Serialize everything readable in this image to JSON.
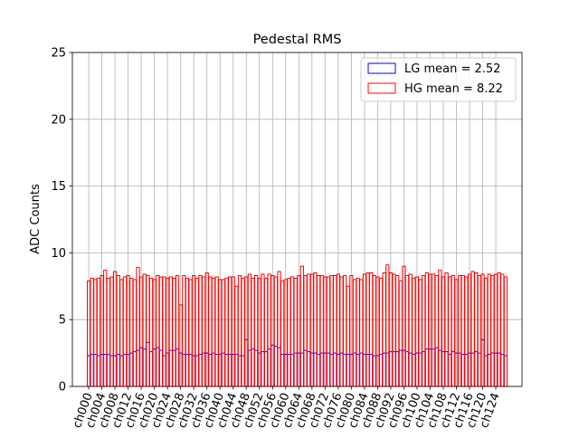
{
  "chart_data": {
    "type": "bar",
    "title": "Pedestal RMS",
    "xlabel": "",
    "ylabel": "ADC Counts",
    "ylim": [
      0,
      25
    ],
    "yticks": [
      0,
      5,
      10,
      15,
      20,
      25
    ],
    "grid": true,
    "legend_position": "top-right",
    "categories": [
      "ch000",
      "ch001",
      "ch002",
      "ch003",
      "ch004",
      "ch005",
      "ch006",
      "ch007",
      "ch008",
      "ch009",
      "ch010",
      "ch011",
      "ch012",
      "ch013",
      "ch014",
      "ch015",
      "ch016",
      "ch017",
      "ch018",
      "ch019",
      "ch020",
      "ch021",
      "ch022",
      "ch023",
      "ch024",
      "ch025",
      "ch026",
      "ch027",
      "ch028",
      "ch029",
      "ch030",
      "ch031",
      "ch032",
      "ch033",
      "ch034",
      "ch035",
      "ch036",
      "ch037",
      "ch038",
      "ch039",
      "ch040",
      "ch041",
      "ch042",
      "ch043",
      "ch044",
      "ch045",
      "ch046",
      "ch047",
      "ch048",
      "ch049",
      "ch050",
      "ch051",
      "ch052",
      "ch053",
      "ch054",
      "ch055",
      "ch056",
      "ch057",
      "ch058",
      "ch059",
      "ch060",
      "ch061",
      "ch062",
      "ch063",
      "ch064",
      "ch065",
      "ch066",
      "ch067",
      "ch068",
      "ch069",
      "ch070",
      "ch071",
      "ch072",
      "ch073",
      "ch074",
      "ch075",
      "ch076",
      "ch077",
      "ch078",
      "ch079",
      "ch080",
      "ch081",
      "ch082",
      "ch083",
      "ch084",
      "ch085",
      "ch086",
      "ch087",
      "ch088",
      "ch089",
      "ch090",
      "ch091",
      "ch092",
      "ch093",
      "ch094",
      "ch095",
      "ch096",
      "ch097",
      "ch098",
      "ch099",
      "ch100",
      "ch101",
      "ch102",
      "ch103",
      "ch104",
      "ch105",
      "ch106",
      "ch107",
      "ch108",
      "ch109",
      "ch110",
      "ch111",
      "ch112",
      "ch113",
      "ch114",
      "ch115",
      "ch116",
      "ch117",
      "ch118",
      "ch119",
      "ch120",
      "ch121",
      "ch122",
      "ch123",
      "ch124",
      "ch125",
      "ch126",
      "ch127"
    ],
    "tick_labels": [
      "ch000",
      "ch004",
      "ch008",
      "ch012",
      "ch016",
      "ch020",
      "ch024",
      "ch028",
      "ch032",
      "ch036",
      "ch040",
      "ch044",
      "ch048",
      "ch052",
      "ch056",
      "ch060",
      "ch064",
      "ch068",
      "ch072",
      "ch076",
      "ch080",
      "ch084",
      "ch088",
      "ch092",
      "ch096",
      "ch100",
      "ch104",
      "ch108",
      "ch112",
      "ch116",
      "ch120",
      "ch124"
    ],
    "series": [
      {
        "name": "LG mean = 2.52",
        "color": "#0000ff",
        "values": [
          2.3,
          2.4,
          2.4,
          2.3,
          2.4,
          2.4,
          2.4,
          2.3,
          2.3,
          2.4,
          2.3,
          2.4,
          2.4,
          2.5,
          2.6,
          2.7,
          2.9,
          2.8,
          3.3,
          2.6,
          2.8,
          2.9,
          2.7,
          2.3,
          2.5,
          2.7,
          2.7,
          2.8,
          2.5,
          2.4,
          2.4,
          2.4,
          2.3,
          2.3,
          2.4,
          2.5,
          2.5,
          2.4,
          2.5,
          2.4,
          2.4,
          2.5,
          2.4,
          2.4,
          2.4,
          2.4,
          2.3,
          2.3,
          3.5,
          2.7,
          2.8,
          2.7,
          2.5,
          2.6,
          2.6,
          2.8,
          3.1,
          3.0,
          2.9,
          2.4,
          2.4,
          2.4,
          2.4,
          2.5,
          2.5,
          2.5,
          2.7,
          2.6,
          2.5,
          2.5,
          2.4,
          2.5,
          2.5,
          2.5,
          2.4,
          2.5,
          2.4,
          2.5,
          2.4,
          2.4,
          2.4,
          2.5,
          2.4,
          2.5,
          2.4,
          2.4,
          2.4,
          2.3,
          2.3,
          2.4,
          2.5,
          2.5,
          2.6,
          2.6,
          2.6,
          2.7,
          2.7,
          2.6,
          2.5,
          2.4,
          2.5,
          2.5,
          2.6,
          2.8,
          2.8,
          2.8,
          2.9,
          2.7,
          2.6,
          2.6,
          2.4,
          2.6,
          2.5,
          2.5,
          2.4,
          2.4,
          2.5,
          2.5,
          2.6,
          2.5,
          3.5,
          2.3,
          2.4,
          2.5,
          2.5,
          2.5,
          2.4,
          2.3
        ]
      },
      {
        "name": "HG mean = 8.22",
        "color": "#ff0000",
        "values": [
          7.9,
          8.1,
          8.0,
          8.1,
          8.3,
          8.7,
          8.1,
          8.2,
          8.6,
          8.3,
          8.0,
          8.2,
          8.3,
          8.1,
          8.0,
          8.9,
          8.2,
          8.4,
          8.3,
          8.1,
          8.0,
          8.3,
          8.2,
          8.2,
          8.1,
          8.2,
          8.1,
          8.3,
          6.1,
          8.3,
          8.1,
          8.0,
          8.3,
          8.1,
          8.3,
          8.2,
          8.5,
          8.2,
          8.1,
          8.2,
          8.0,
          8.0,
          8.1,
          8.2,
          8.2,
          7.5,
          8.3,
          8.1,
          8.2,
          8.4,
          8.1,
          8.3,
          8.1,
          8.4,
          8.1,
          8.4,
          8.3,
          8.2,
          8.6,
          7.9,
          8.0,
          8.1,
          8.2,
          8.1,
          8.3,
          9.0,
          8.3,
          8.4,
          8.4,
          8.5,
          8.3,
          8.3,
          8.2,
          8.2,
          8.3,
          8.3,
          8.4,
          8.2,
          8.3,
          7.5,
          8.3,
          8.0,
          8.1,
          8.0,
          8.4,
          8.5,
          8.5,
          8.3,
          8.2,
          8.1,
          8.5,
          9.1,
          8.5,
          8.4,
          8.3,
          7.9,
          9.0,
          8.3,
          8.4,
          8.1,
          8.2,
          8.0,
          8.3,
          8.5,
          8.4,
          8.4,
          8.3,
          8.7,
          8.2,
          8.5,
          8.2,
          8.3,
          8.0,
          8.3,
          8.3,
          8.2,
          8.4,
          8.6,
          8.5,
          8.3,
          8.4,
          8.1,
          8.4,
          8.3,
          8.4,
          8.5,
          8.4,
          8.2
        ]
      }
    ]
  }
}
